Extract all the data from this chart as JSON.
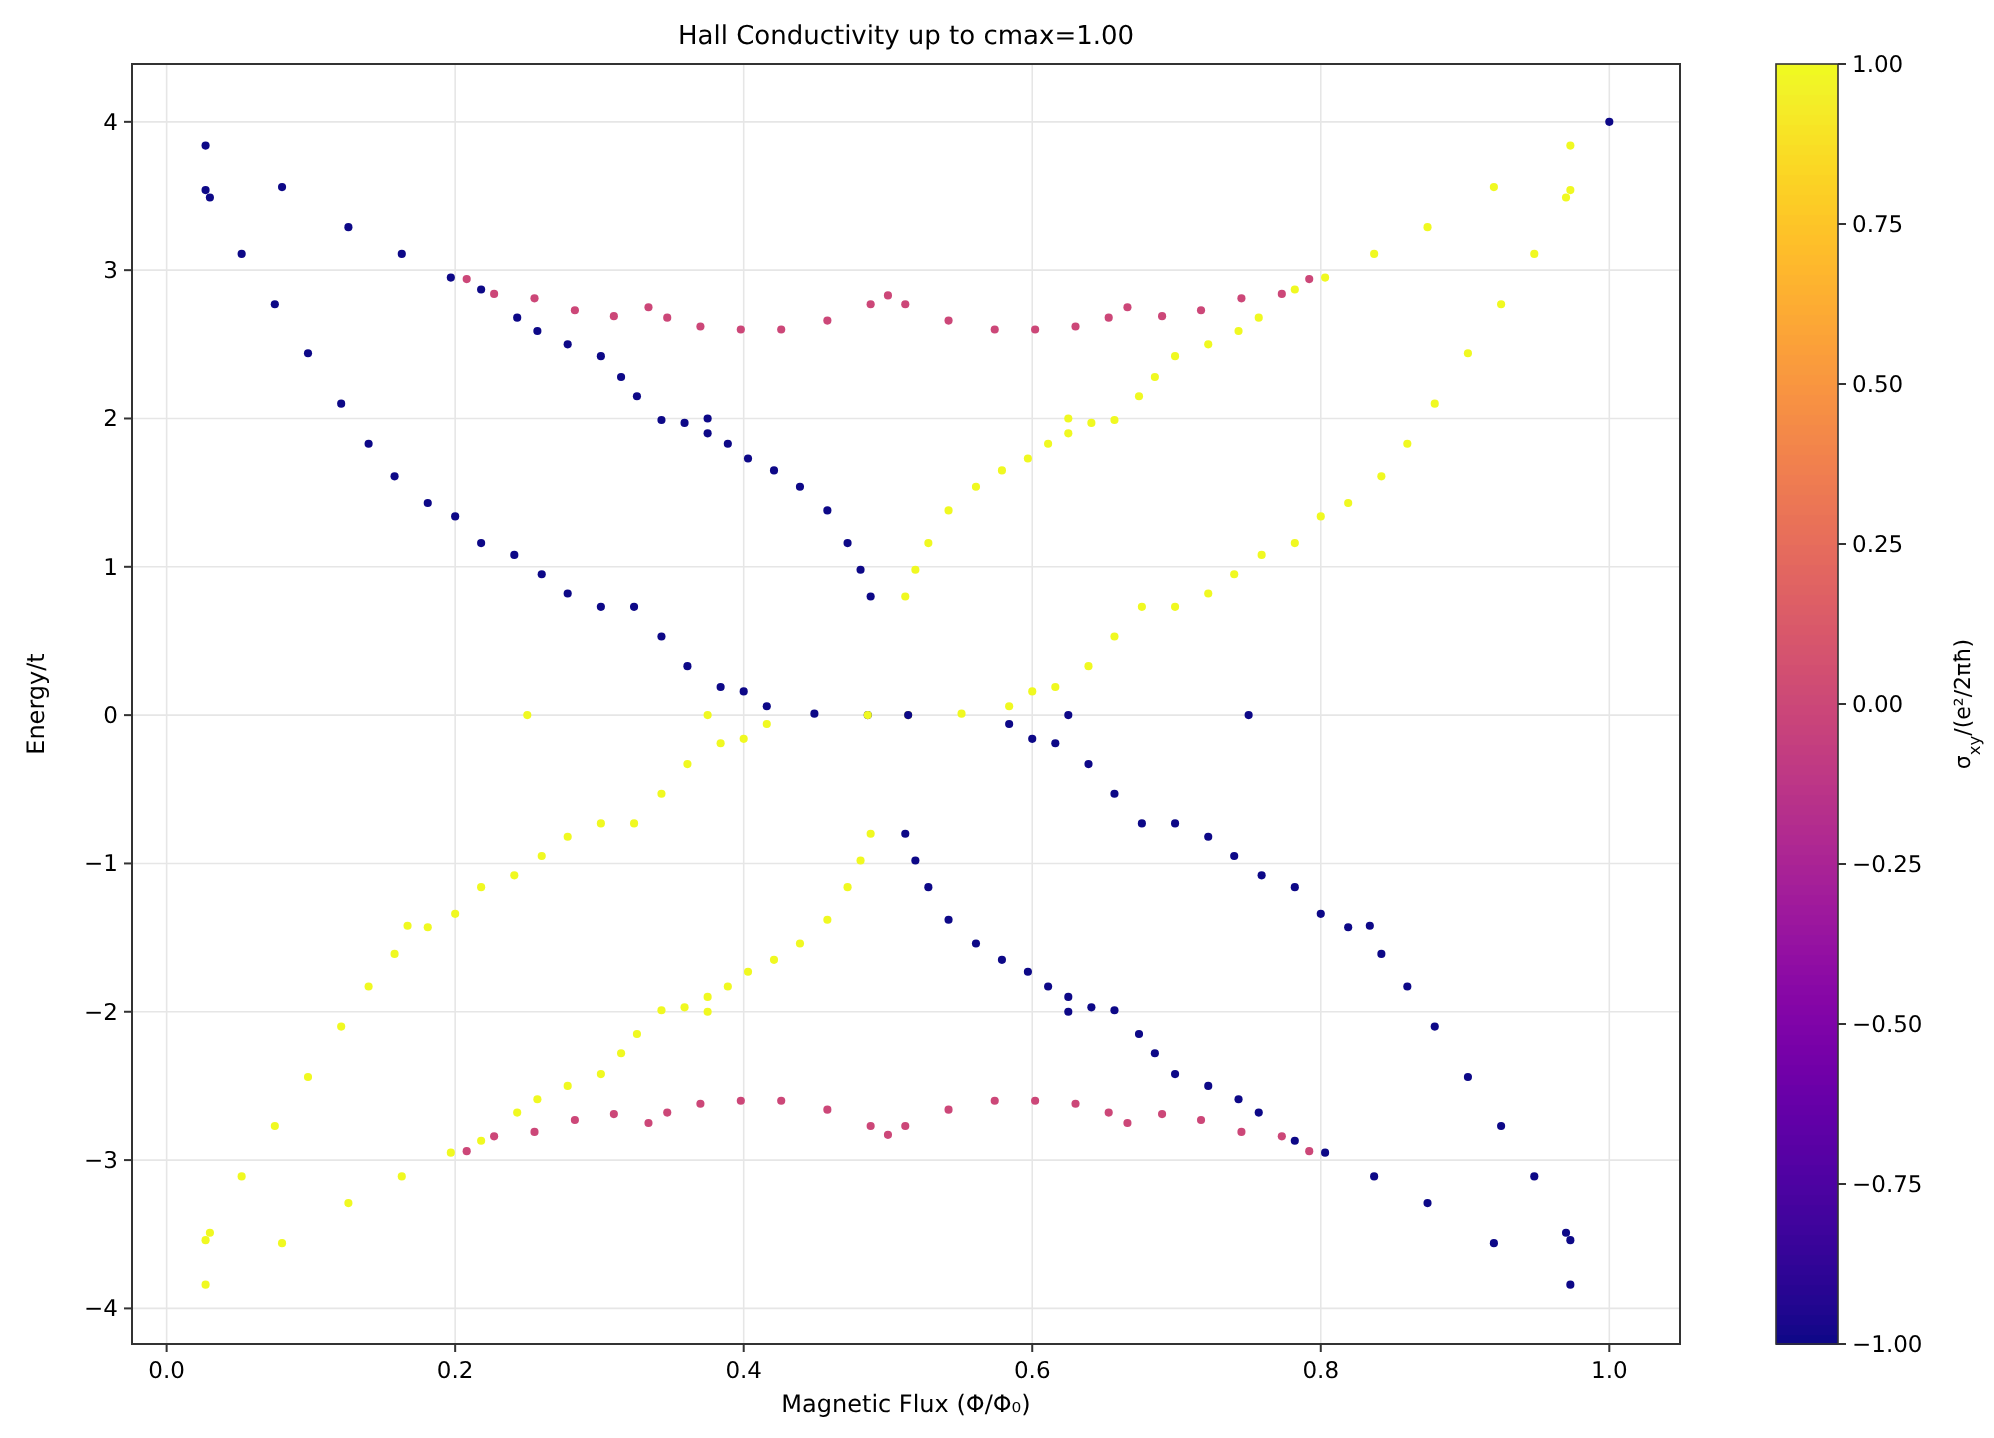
{
  "chart_data": {
    "type": "scatter",
    "title": "Hall Conductivity up to cmax=1.00",
    "xlabel": "Magnetic Flux (Φ/Φ₀)",
    "ylabel": "Energy/t",
    "clabel": "σ$_{xy}$/(e²/2πħ)",
    "xlim": [
      -0.024,
      1.049
    ],
    "ylim": [
      -4.24,
      4.39
    ],
    "xticks": [
      {
        "value": 0,
        "label": "0.0"
      },
      {
        "value": 0.2,
        "label": "0.2"
      },
      {
        "value": 0.4,
        "label": "0.4"
      },
      {
        "value": 0.6,
        "label": "0.6"
      },
      {
        "value": 0.8,
        "label": "0.8"
      },
      {
        "value": 1,
        "label": "1.0"
      }
    ],
    "yticks": [
      {
        "value": -4,
        "label": "−4"
      },
      {
        "value": -3,
        "label": "−3"
      },
      {
        "value": -2,
        "label": "−2"
      },
      {
        "value": -1,
        "label": "−1"
      },
      0,
      1,
      2,
      3,
      4
    ],
    "clim": [
      -1,
      1
    ],
    "cticks": [
      {
        "value": -1,
        "label": "−1.00"
      },
      {
        "value": -0.75,
        "label": "−0.75"
      },
      {
        "value": -0.5,
        "label": "−0.50"
      },
      {
        "value": -0.25,
        "label": "−0.25"
      },
      {
        "value": 0,
        "label": "0.00"
      },
      {
        "value": 0.25,
        "label": "0.25"
      },
      {
        "value": 0.5,
        "label": "0.50"
      },
      {
        "value": 0.75,
        "label": "0.75"
      },
      {
        "value": 1,
        "label": "1.00"
      }
    ],
    "grid": true,
    "marker": "circle",
    "series": [
      {
        "x": [
          0.208,
          0.227,
          0.255,
          0.283,
          0.31,
          0.334,
          0.347,
          0.37,
          0.398,
          0.426,
          0.458,
          0.488,
          0.5,
          0.792,
          0.773,
          0.745,
          0.717,
          0.69,
          0.666,
          0.653,
          0.63,
          0.602,
          0.574,
          0.542,
          0.512
        ],
        "values": [
          2.94,
          2.84,
          2.81,
          2.73,
          2.69,
          2.75,
          2.68,
          2.62,
          2.6,
          2.6,
          2.66,
          2.77,
          2.83,
          2.94,
          2.84,
          2.81,
          2.73,
          2.69,
          2.75,
          2.68,
          2.62,
          2.6,
          2.6,
          2.66,
          2.77
        ],
        "cvalues": [
          0,
          0,
          0,
          0,
          0,
          0,
          0,
          0,
          0,
          0,
          0,
          0,
          0,
          0,
          0,
          0,
          0,
          0,
          0,
          0,
          0,
          0,
          0,
          0,
          0
        ]
      },
      {
        "x": [
          0.208,
          0.227,
          0.255,
          0.283,
          0.31,
          0.334,
          0.347,
          0.37,
          0.398,
          0.426,
          0.458,
          0.488,
          0.5,
          0.792,
          0.773,
          0.745,
          0.717,
          0.69,
          0.666,
          0.653,
          0.63,
          0.602,
          0.574,
          0.542,
          0.512
        ],
        "values": [
          -2.94,
          -2.84,
          -2.81,
          -2.73,
          -2.69,
          -2.75,
          -2.68,
          -2.62,
          -2.6,
          -2.6,
          -2.66,
          -2.77,
          -2.83,
          -2.94,
          -2.84,
          -2.81,
          -2.73,
          -2.69,
          -2.75,
          -2.68,
          -2.62,
          -2.6,
          -2.6,
          -2.66,
          -2.77
        ],
        "cvalues": [
          0,
          0,
          0,
          0,
          0,
          0,
          0,
          0,
          0,
          0,
          0,
          0,
          0,
          0,
          0,
          0,
          0,
          0,
          0,
          0,
          0,
          0,
          0,
          0,
          0
        ]
      },
      {
        "x": [
          0.027,
          0.08,
          0.126,
          0.163,
          0.197,
          0.218,
          0.243,
          0.257,
          0.278,
          0.301,
          0.315,
          0.326,
          0.343,
          0.359,
          0.375,
          0.389,
          0.403,
          0.421,
          0.439,
          0.458,
          0.472,
          0.481,
          0.488,
          0.375
        ],
        "values": [
          3.84,
          3.56,
          3.29,
          3.11,
          2.95,
          2.87,
          2.68,
          2.59,
          2.5,
          2.42,
          2.28,
          2.15,
          1.99,
          1.97,
          1.9,
          1.83,
          1.73,
          1.65,
          1.54,
          1.38,
          1.16,
          0.98,
          0.8,
          2.0
        ],
        "cvalues": [
          -1,
          -1,
          -1,
          -1,
          -1,
          -1,
          -1,
          -1,
          -1,
          -1,
          -1,
          -1,
          -1,
          -1,
          -1,
          -1,
          -1,
          -1,
          -1,
          -1,
          -1,
          -1,
          -1,
          -1
        ]
      },
      {
        "x": [
          0.973,
          0.92,
          0.874,
          0.837,
          0.803,
          0.782,
          0.757,
          0.743,
          0.722,
          0.699,
          0.685,
          0.674,
          0.657,
          0.641,
          0.625,
          0.611,
          0.597,
          0.579,
          0.561,
          0.542,
          0.528,
          0.519,
          0.512,
          0.625
        ],
        "values": [
          3.84,
          3.56,
          3.29,
          3.11,
          2.95,
          2.87,
          2.68,
          2.59,
          2.5,
          2.42,
          2.28,
          2.15,
          1.99,
          1.97,
          1.9,
          1.83,
          1.73,
          1.65,
          1.54,
          1.38,
          1.16,
          0.98,
          0.8,
          2.0
        ],
        "cvalues": [
          1,
          1,
          1,
          1,
          1,
          1,
          1,
          1,
          1,
          1,
          1,
          1,
          1,
          1,
          1,
          1,
          1,
          1,
          1,
          1,
          1,
          1,
          1,
          1
        ]
      },
      {
        "x": [
          0.027,
          0.08,
          0.126,
          0.163,
          0.197,
          0.218,
          0.243,
          0.257,
          0.278,
          0.301,
          0.315,
          0.326,
          0.343,
          0.359,
          0.375,
          0.389,
          0.403,
          0.421,
          0.439,
          0.458,
          0.472,
          0.481,
          0.488,
          0.375
        ],
        "values": [
          -3.84,
          -3.56,
          -3.29,
          -3.11,
          -2.95,
          -2.87,
          -2.68,
          -2.59,
          -2.5,
          -2.42,
          -2.28,
          -2.15,
          -1.99,
          -1.97,
          -1.9,
          -1.83,
          -1.73,
          -1.65,
          -1.54,
          -1.38,
          -1.16,
          -0.98,
          -0.8,
          -2.0
        ],
        "cvalues": [
          1,
          1,
          1,
          1,
          1,
          1,
          1,
          1,
          1,
          1,
          1,
          1,
          1,
          1,
          1,
          1,
          1,
          1,
          1,
          1,
          1,
          1,
          1,
          1
        ]
      },
      {
        "x": [
          0.973,
          0.92,
          0.874,
          0.837,
          0.803,
          0.782,
          0.757,
          0.743,
          0.722,
          0.699,
          0.685,
          0.674,
          0.657,
          0.641,
          0.625,
          0.611,
          0.597,
          0.579,
          0.561,
          0.542,
          0.528,
          0.519,
          0.512,
          0.625
        ],
        "values": [
          -3.84,
          -3.56,
          -3.29,
          -3.11,
          -2.95,
          -2.87,
          -2.68,
          -2.59,
          -2.5,
          -2.42,
          -2.28,
          -2.15,
          -1.99,
          -1.97,
          -1.9,
          -1.83,
          -1.73,
          -1.65,
          -1.54,
          -1.38,
          -1.16,
          -0.98,
          -0.8,
          -2.0
        ],
        "cvalues": [
          -1,
          -1,
          -1,
          -1,
          -1,
          -1,
          -1,
          -1,
          -1,
          -1,
          -1,
          -1,
          -1,
          -1,
          -1,
          -1,
          -1,
          -1,
          -1,
          -1,
          -1,
          -1,
          -1,
          -1
        ]
      },
      {
        "x": [
          0.027,
          0.03,
          0.052,
          0.075,
          0.098,
          0.121,
          0.14,
          0.158,
          0.181,
          0.2,
          0.218,
          0.241,
          0.26,
          0.278,
          0.301,
          0.324,
          0.343,
          0.361,
          0.384,
          0.4,
          0.416,
          0.449,
          0.486
        ],
        "values": [
          3.54,
          3.49,
          3.11,
          2.77,
          2.44,
          2.1,
          1.83,
          1.61,
          1.43,
          1.34,
          1.16,
          1.08,
          0.95,
          0.82,
          0.73,
          0.73,
          0.53,
          0.33,
          0.19,
          0.16,
          0.06,
          0.01,
          0
        ],
        "cvalues": [
          -1,
          -1,
          -1,
          -1,
          -1,
          -1,
          -1,
          -1,
          -1,
          -1,
          -1,
          -1,
          -1,
          -1,
          -1,
          -1,
          -1,
          -1,
          -1,
          -1,
          -1,
          -1,
          -1
        ]
      },
      {
        "x": [
          0.973,
          0.97,
          0.948,
          0.925,
          0.902,
          0.879,
          0.86,
          0.842,
          0.819,
          0.8,
          0.782,
          0.759,
          0.74,
          0.722,
          0.699,
          0.676,
          0.657,
          0.639,
          0.616,
          0.6,
          0.584,
          0.551,
          0.514
        ],
        "values": [
          3.54,
          3.49,
          3.11,
          2.77,
          2.44,
          2.1,
          1.83,
          1.61,
          1.43,
          1.34,
          1.16,
          1.08,
          0.95,
          0.82,
          0.73,
          0.73,
          0.53,
          0.33,
          0.19,
          0.16,
          0.06,
          0.01,
          0
        ],
        "cvalues": [
          1,
          1,
          1,
          1,
          1,
          1,
          1,
          1,
          1,
          1,
          1,
          1,
          1,
          1,
          1,
          1,
          1,
          1,
          1,
          1,
          1,
          1,
          1
        ]
      },
      {
        "x": [
          0.027,
          0.03,
          0.052,
          0.075,
          0.098,
          0.121,
          0.14,
          0.158,
          0.181,
          0.2,
          0.218,
          0.241,
          0.26,
          0.278,
          0.301,
          0.324,
          0.343,
          0.361,
          0.384,
          0.4,
          0.416,
          0.486
        ],
        "values": [
          -3.54,
          -3.49,
          -3.11,
          -2.77,
          -2.44,
          -2.1,
          -1.83,
          -1.61,
          -1.43,
          -1.34,
          -1.16,
          -1.08,
          -0.95,
          -0.82,
          -0.73,
          -0.73,
          -0.53,
          -0.33,
          -0.19,
          -0.16,
          -0.06,
          0
        ],
        "cvalues": [
          1,
          1,
          1,
          1,
          1,
          1,
          1,
          1,
          1,
          1,
          1,
          1,
          1,
          1,
          1,
          1,
          1,
          1,
          1,
          1,
          1,
          1
        ]
      },
      {
        "x": [
          0.973,
          0.97,
          0.948,
          0.925,
          0.902,
          0.879,
          0.86,
          0.842,
          0.819,
          0.8,
          0.782,
          0.759,
          0.74,
          0.722,
          0.699,
          0.676,
          0.657,
          0.639,
          0.616,
          0.6,
          0.584,
          0.514
        ],
        "values": [
          -3.54,
          -3.49,
          -3.11,
          -2.77,
          -2.44,
          -2.1,
          -1.83,
          -1.61,
          -1.43,
          -1.34,
          -1.16,
          -1.08,
          -0.95,
          -0.82,
          -0.73,
          -0.73,
          -0.53,
          -0.33,
          -0.19,
          -0.16,
          -0.06,
          0
        ],
        "cvalues": [
          -1,
          -1,
          -1,
          -1,
          -1,
          -1,
          -1,
          -1,
          -1,
          -1,
          -1,
          -1,
          -1,
          -1,
          -1,
          -1,
          -1,
          -1,
          -1,
          -1,
          -1,
          -1
        ]
      },
      {
        "x": [
          0.25,
          0.375,
          0.167
        ],
        "values": [
          0,
          0,
          -1.42
        ],
        "cvalues": [
          1,
          1,
          1
        ]
      },
      {
        "x": [
          0.625,
          0.75,
          0.834,
          1.0
        ],
        "values": [
          0,
          0,
          -1.42,
          4.0
        ],
        "cvalues": [
          -1,
          -1,
          -1,
          -1
        ]
      }
    ]
  }
}
